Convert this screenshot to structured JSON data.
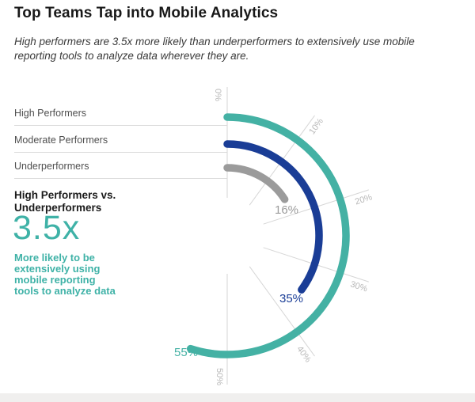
{
  "page": {
    "title": "Top Teams Tap into Mobile Analytics",
    "subtitle": "High performers are 3.5x more likely than underperformers to extensively use mobile\nreporting tools to analyze data wherever they are."
  },
  "callout": {
    "heading": "High Performers vs.\nUnderperformers",
    "multiplier": "3.5x",
    "description": "More likely to be\nextensively using\nmobile reporting\ntools to analyze data"
  },
  "colors": {
    "teal": "#44b1a4",
    "navy": "#1a3d96",
    "gray": "#9b9b9b",
    "grid": "#d6d6d6",
    "tick_text": "#b8b8b8",
    "leader_line": "#dcdcdc"
  },
  "chart_data": {
    "type": "bar",
    "subtype": "radial-gauge",
    "title": "Top Teams Tap into Mobile Analytics",
    "unit": "%",
    "categories": [
      "High Performers",
      "Moderate Performers",
      "Underperformers"
    ],
    "series": [
      {
        "name": "High Performers",
        "value": 55,
        "label": "55%",
        "color": "#44b1a4"
      },
      {
        "name": "Moderate Performers",
        "value": 35,
        "label": "35%",
        "color": "#1a3d96"
      },
      {
        "name": "Underperformers",
        "value": 16,
        "label": "16%",
        "color": "#9b9b9b"
      }
    ],
    "axis": {
      "min": 0,
      "max": 100,
      "degrees_per_unit": 3.6,
      "start_angle_deg": 0,
      "direction": "clockwise",
      "ticks": [
        {
          "label": "0%",
          "value": 0
        },
        {
          "label": "10%",
          "value": 10
        },
        {
          "label": "20%",
          "value": 20
        },
        {
          "label": "30%",
          "value": 30
        },
        {
          "label": "40%",
          "value": 40
        },
        {
          "label": "50%",
          "value": 50
        }
      ]
    },
    "grid": true,
    "legend_position": "left"
  }
}
